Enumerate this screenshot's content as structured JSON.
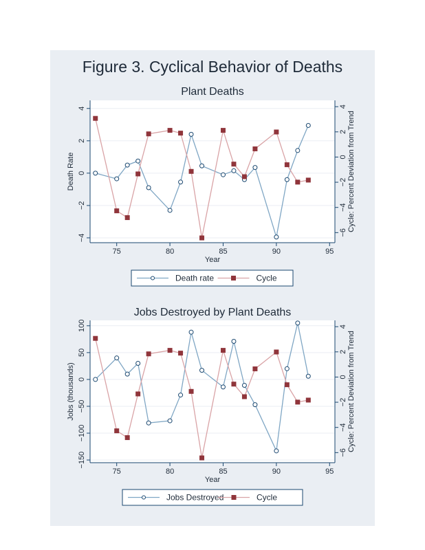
{
  "figure_title": "Figure 3. Cyclical Behavior of Deaths",
  "colors": {
    "primary": "#1a476f",
    "primary_light": "#7fa6c4",
    "cycle": "#90353b",
    "cycle_light": "#d9a3a6",
    "background": "#eaeef3"
  },
  "chart_data": [
    {
      "type": "line",
      "title": "Plant Deaths",
      "xlabel": "Year",
      "ylabel": "Death Rate",
      "y2label": "Cycle:  Percent Deviation from Trend",
      "xlim": [
        72.5,
        95.5
      ],
      "xticks": [
        75,
        80,
        85,
        90,
        95
      ],
      "ylim": [
        -4.3,
        4.5
      ],
      "yticks": [
        -4,
        -2,
        0,
        2,
        4
      ],
      "y2lim": [
        -6.8,
        4.5
      ],
      "y2ticks": [
        -6,
        -4,
        -2,
        0,
        2,
        4
      ],
      "legend": "bottom",
      "grid": true,
      "x": [
        73,
        75,
        76,
        77,
        78,
        80,
        81,
        82,
        83,
        85,
        86,
        87,
        88,
        90,
        91,
        92,
        93
      ],
      "series": [
        {
          "name": "Death rate",
          "axis": "left",
          "marker": "circle",
          "values": [
            0,
            -0.35,
            0.5,
            0.75,
            -0.9,
            -2.3,
            -0.55,
            2.4,
            0.45,
            -0.1,
            0.15,
            -0.4,
            0.35,
            -3.95,
            -0.4,
            1.4,
            2.95
          ]
        },
        {
          "name": "Cycle",
          "axis": "right",
          "marker": "square",
          "values": [
            3.07,
            -4.27,
            -4.81,
            -1.34,
            1.84,
            2.12,
            1.9,
            -1.14,
            -6.42,
            2.12,
            -0.56,
            -1.56,
            0.65,
            1.99,
            -0.61,
            -1.99,
            -1.83
          ]
        }
      ]
    },
    {
      "type": "line",
      "title": "Jobs Destroyed by Plant Deaths",
      "xlabel": "Year",
      "ylabel": "Jobs (thousands)",
      "y2label": "Cycle:  Percent Deviation from Trend",
      "xlim": [
        72.5,
        95.5
      ],
      "xticks": [
        75,
        80,
        85,
        90,
        95
      ],
      "ylim": [
        -155,
        110
      ],
      "yticks": [
        -150,
        -100,
        -50,
        0,
        50,
        100
      ],
      "y2lim": [
        -6.8,
        4.5
      ],
      "y2ticks": [
        -6,
        -4,
        -2,
        0,
        2,
        4
      ],
      "legend": "bottom",
      "grid": true,
      "x": [
        73,
        75,
        76,
        77,
        78,
        80,
        81,
        82,
        83,
        85,
        86,
        87,
        88,
        90,
        91,
        92,
        93
      ],
      "series": [
        {
          "name": "Jobs Destroyed",
          "axis": "left",
          "marker": "circle",
          "values": [
            0,
            40,
            10,
            30,
            -81,
            -77,
            -29,
            88,
            17,
            -14,
            71,
            -11,
            -47,
            -133,
            20,
            105,
            6
          ]
        },
        {
          "name": "Cycle",
          "axis": "right",
          "marker": "square",
          "values": [
            3.07,
            -4.27,
            -4.81,
            -1.34,
            1.84,
            2.12,
            1.9,
            -1.14,
            -6.42,
            2.12,
            -0.56,
            -1.56,
            0.65,
            1.99,
            -0.61,
            -1.99,
            -1.83
          ]
        }
      ]
    }
  ]
}
